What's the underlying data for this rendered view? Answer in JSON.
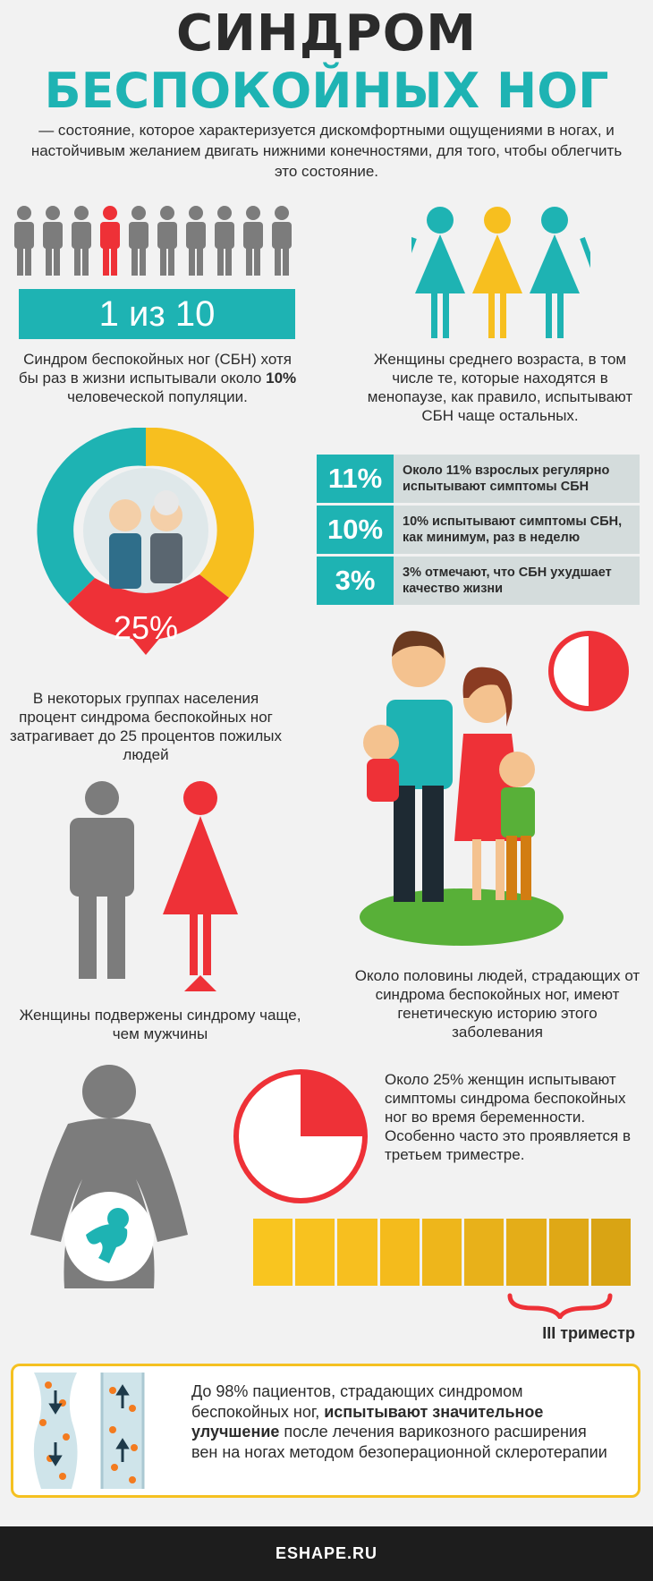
{
  "header": {
    "title_line1": "СИНДРОМ",
    "title_line2": "БЕСПОКОЙНЫХ НОГ",
    "intro": "— состояние, которое характеризуется дискомфортными ощущениями в ногах, и настойчивым желанием двигать нижними конечностями, для того, чтобы облегчить это состояние."
  },
  "one_in_ten": {
    "badge": "1 из 10",
    "text_before": "Синдром беспокойных ног (СБН) хотя бы раз в жизни испытывали около ",
    "text_bold": "10%",
    "text_after": " человеческой популяции."
  },
  "women_middle_age": {
    "text": "Женщины среднего возраста, в том числе те, которые находятся в менопаузе, как правило, испытывают СБН чаще остальных."
  },
  "elderly": {
    "percent": "25%",
    "text": "В некоторых группах населения процент синдрома беспокойных ног затрагивает до 25 процентов пожилых людей"
  },
  "stats": [
    {
      "num": "11%",
      "text": "Около 11% взрослых регулярно испытывают симптомы СБН"
    },
    {
      "num": "10%",
      "text": "10% испытывают симптомы СБН, как минимум, раз в неделю"
    },
    {
      "num": "3%",
      "text": "3% отмечают, что СБН  ухудшает качество жизни"
    }
  ],
  "gender": {
    "text": "Женщины подвержены синдрому чаще, чем мужчины"
  },
  "genetic": {
    "text": "Около половины людей, страдающих от синдрома беспокойных ног, имеют генетическую историю этого заболевания"
  },
  "pregnancy": {
    "text": "Около 25% женщин испытывают симптомы синдрома беспокойных ног во время беременности. Особенно часто это проявляется в третьем триместре.",
    "trimester_label": "III триместр"
  },
  "treatment": {
    "text_1": "До 98% пациентов, страдающих синдромом беспокойных ног, ",
    "text_bold": "испытывают значительное улучшение",
    "text_2": " после лечения варикозного расширения вен на ногах методом безоперационной склеротерапии"
  },
  "footer": {
    "site": "ESHAPE.RU"
  },
  "colors": {
    "teal": "#1eb3b3",
    "yellow": "#f7bf1f",
    "red": "#ee3137",
    "gray": "#7c7c7c",
    "dark": "#2b2b2b"
  },
  "icons": [
    "person-icon",
    "woman-icon",
    "man-icon",
    "family-illustration",
    "elderly-couple-illustration",
    "pregnant-woman-icon",
    "baby-icon",
    "vein-icon",
    "pie-half-icon",
    "pie-quarter-icon",
    "brace-icon"
  ]
}
